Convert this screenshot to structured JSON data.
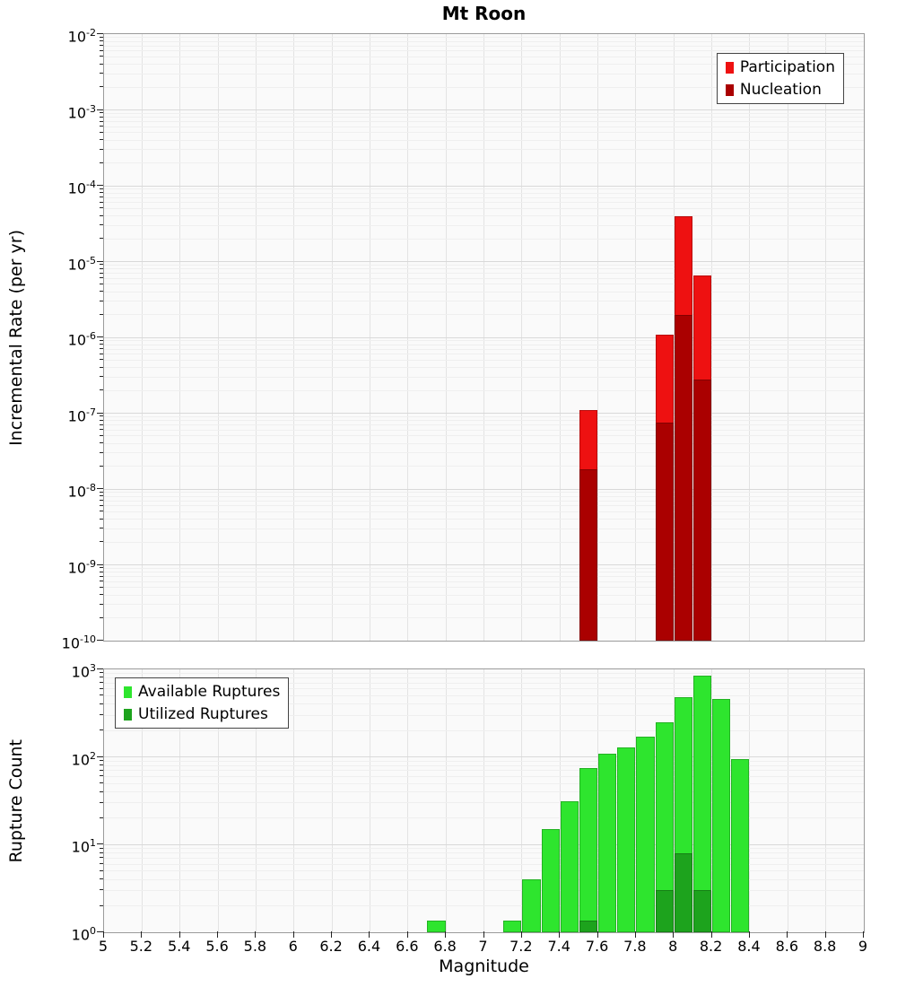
{
  "title": "Mt Roon",
  "chart_data": [
    {
      "type": "bar",
      "title": "Mt Roon",
      "ylabel": "Incremental Rate (per yr)",
      "xlabel": "",
      "xlim": [
        5,
        9
      ],
      "yscale": "log",
      "ylim_exp": [
        -10,
        -2
      ],
      "bar_width": 0.1,
      "grid": true,
      "legend_position": "top-right",
      "xticks": [
        5,
        5.2,
        5.4,
        5.6,
        5.8,
        6,
        6.2,
        6.4,
        6.6,
        6.8,
        7,
        7.2,
        7.4,
        7.6,
        7.8,
        8,
        8.2,
        8.4,
        8.6,
        8.8,
        9
      ],
      "ytick_exponents": [
        -2,
        -3,
        -4,
        -5,
        -6,
        -7,
        -8,
        -9,
        -10
      ],
      "series": [
        {
          "name": "Participation",
          "color": "#ee1111",
          "points": [
            {
              "x": 7.55,
              "y": 1.1e-07
            },
            {
              "x": 7.95,
              "y": 1.1e-06
            },
            {
              "x": 8.05,
              "y": 4e-05
            },
            {
              "x": 8.15,
              "y": 6.5e-06
            }
          ]
        },
        {
          "name": "Nucleation",
          "color": "#aa0000",
          "points": [
            {
              "x": 7.55,
              "y": 1.8e-08
            },
            {
              "x": 7.95,
              "y": 7.5e-08
            },
            {
              "x": 8.05,
              "y": 2e-06
            },
            {
              "x": 8.15,
              "y": 2.8e-07
            }
          ]
        }
      ]
    },
    {
      "type": "bar",
      "title": "",
      "ylabel": "Rupture Count",
      "xlabel": "Magnitude",
      "xlim": [
        5,
        9
      ],
      "yscale": "log",
      "ylim_exp": [
        0,
        3
      ],
      "bar_width": 0.1,
      "grid": true,
      "legend_position": "top-left",
      "xticks": [
        5,
        5.2,
        5.4,
        5.6,
        5.8,
        6,
        6.2,
        6.4,
        6.6,
        6.8,
        7,
        7.2,
        7.4,
        7.6,
        7.8,
        8,
        8.2,
        8.4,
        8.6,
        8.8,
        9
      ],
      "xtick_labels": [
        "5",
        "5.2",
        "5.4",
        "5.6",
        "5.8",
        "6",
        "6.2",
        "6.4",
        "6.6",
        "6.8",
        "7",
        "7.2",
        "7.4",
        "7.6",
        "7.8",
        "8",
        "8.2",
        "8.4",
        "8.6",
        "8.8",
        "9"
      ],
      "ytick_exponents": [
        3,
        2,
        1,
        0
      ],
      "series": [
        {
          "name": "Available Ruptures",
          "color": "#2ee52e",
          "points": [
            {
              "x": 6.75,
              "y": 1
            },
            {
              "x": 7.15,
              "y": 1
            },
            {
              "x": 7.25,
              "y": 4
            },
            {
              "x": 7.35,
              "y": 15
            },
            {
              "x": 7.45,
              "y": 31
            },
            {
              "x": 7.55,
              "y": 75
            },
            {
              "x": 7.65,
              "y": 110
            },
            {
              "x": 7.75,
              "y": 130
            },
            {
              "x": 7.85,
              "y": 170
            },
            {
              "x": 7.95,
              "y": 250
            },
            {
              "x": 8.05,
              "y": 480
            },
            {
              "x": 8.15,
              "y": 850
            },
            {
              "x": 8.25,
              "y": 460
            },
            {
              "x": 8.35,
              "y": 95
            }
          ]
        },
        {
          "name": "Utilized Ruptures",
          "color": "#1da31d",
          "points": [
            {
              "x": 7.55,
              "y": 1
            },
            {
              "x": 7.95,
              "y": 3
            },
            {
              "x": 8.05,
              "y": 8
            },
            {
              "x": 8.15,
              "y": 3
            }
          ]
        }
      ]
    }
  ]
}
